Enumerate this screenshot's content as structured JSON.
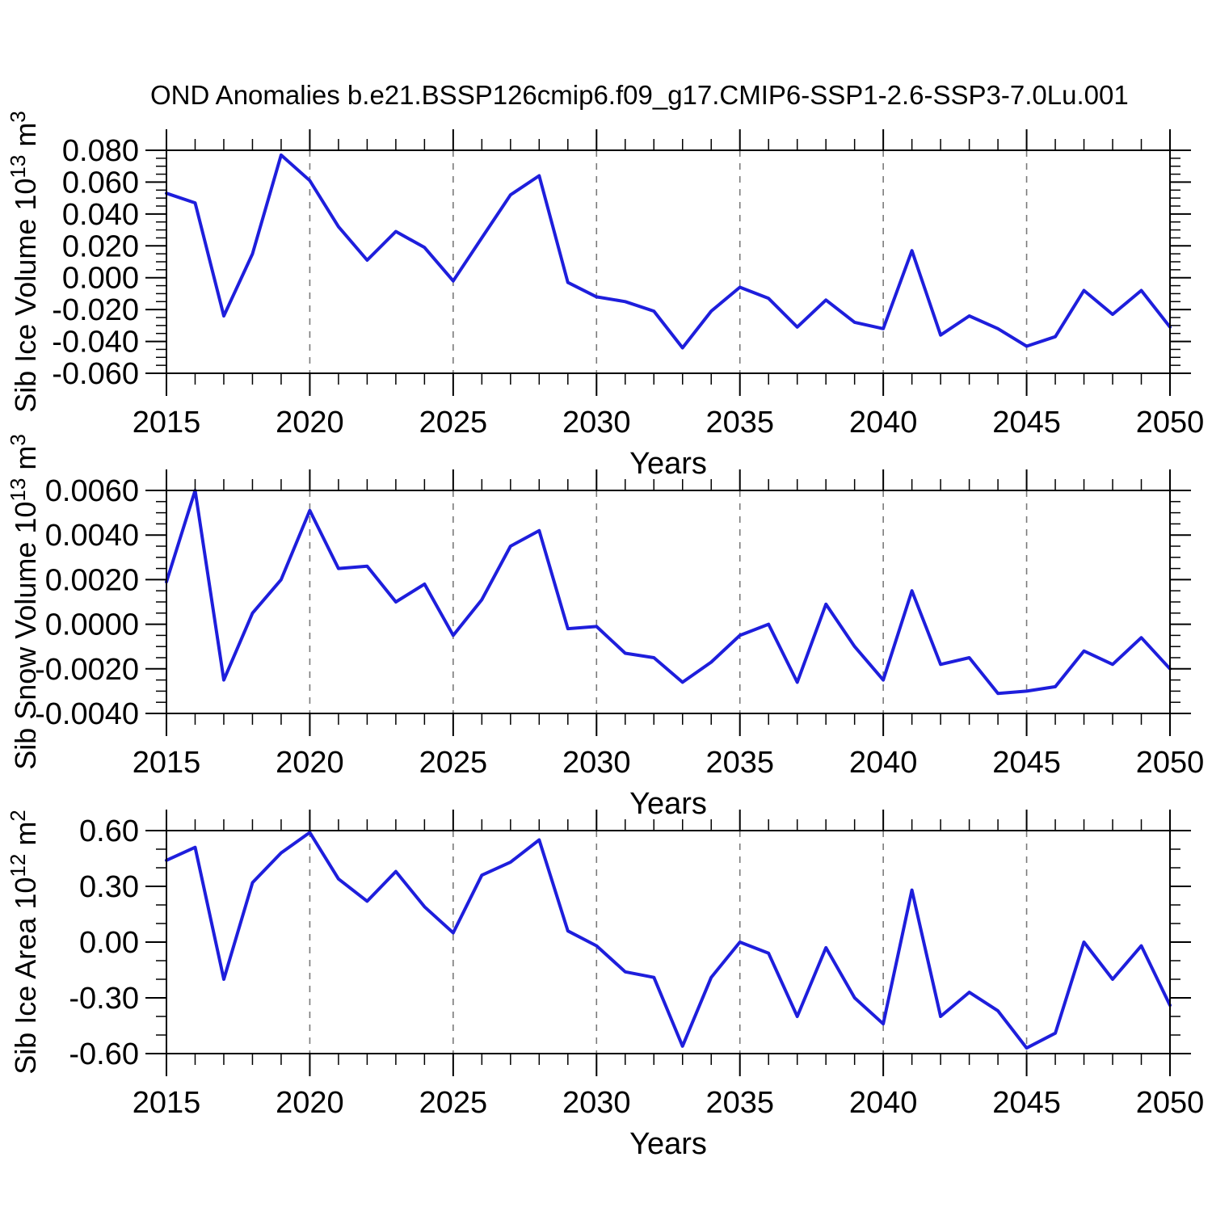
{
  "title": "OND Anomalies b.e21.BSSP126cmip6.f09_g17.CMIP6-SSP1-2.6-SSP3-7.0Lu.001",
  "colors": {
    "line": "#1e1edc",
    "grid": "#7a7a7a",
    "axis": "#000000",
    "text": "#000000",
    "background": "#ffffff"
  },
  "x_axis": {
    "label": "Years",
    "range": [
      2015,
      2050
    ],
    "ticks": [
      2015,
      2020,
      2025,
      2030,
      2035,
      2040,
      2045,
      2050
    ],
    "tick_labels": [
      "2015",
      "2020",
      "2025",
      "2030",
      "2035",
      "2040",
      "2045",
      "2050"
    ],
    "minor_step": 1,
    "grid_years": [
      2020,
      2025,
      2030,
      2035,
      2040,
      2045
    ]
  },
  "chart_data": [
    {
      "type": "line",
      "id": "sib-ice-volume",
      "ylabel_text": "Sib Ice Volume 10^13 m^3",
      "ylabel_parts": [
        {
          "t": "Sib Ice Volume 10"
        },
        {
          "t": "13",
          "sup": true
        },
        {
          "t": " m"
        },
        {
          "t": "3",
          "sup": true
        }
      ],
      "ylim": [
        -0.06,
        0.08
      ],
      "ytick_labels": [
        "0.080",
        "0.060",
        "0.040",
        "0.020",
        "0.000",
        "-0.020",
        "-0.040",
        "-0.060"
      ],
      "yminor_step": 0.005,
      "x": [
        2015,
        2016,
        2017,
        2018,
        2019,
        2020,
        2021,
        2022,
        2023,
        2024,
        2025,
        2026,
        2027,
        2028,
        2029,
        2030,
        2031,
        2032,
        2033,
        2034,
        2035,
        2036,
        2037,
        2038,
        2039,
        2040,
        2041,
        2042,
        2043,
        2044,
        2045,
        2046,
        2047,
        2048,
        2049,
        2050
      ],
      "values": [
        0.053,
        0.047,
        -0.024,
        0.015,
        0.077,
        0.061,
        0.032,
        0.011,
        0.029,
        0.019,
        -0.002,
        0.025,
        0.052,
        0.064,
        -0.003,
        -0.012,
        -0.015,
        -0.021,
        -0.044,
        -0.021,
        -0.006,
        -0.013,
        -0.031,
        -0.014,
        -0.028,
        -0.032,
        0.017,
        -0.036,
        -0.024,
        -0.032,
        -0.043,
        -0.037,
        -0.008,
        -0.023,
        -0.008,
        -0.031
      ]
    },
    {
      "type": "line",
      "id": "sib-snow-volume",
      "ylabel_text": "Sib Snow Volume 10^13 m^3",
      "ylabel_parts": [
        {
          "t": "Sib Snow Volume 10"
        },
        {
          "t": "13",
          "sup": true
        },
        {
          "t": " m"
        },
        {
          "t": "3",
          "sup": true
        }
      ],
      "ylim": [
        -0.004,
        0.006
      ],
      "ytick_labels": [
        "0.0060",
        "0.0040",
        "0.0020",
        "0.0000",
        "-0.0020",
        "-0.0040"
      ],
      "yminor_step": 0.0005,
      "x": [
        2015,
        2016,
        2017,
        2018,
        2019,
        2020,
        2021,
        2022,
        2023,
        2024,
        2025,
        2026,
        2027,
        2028,
        2029,
        2030,
        2031,
        2032,
        2033,
        2034,
        2035,
        2036,
        2037,
        2038,
        2039,
        2040,
        2041,
        2042,
        2043,
        2044,
        2045,
        2046,
        2047,
        2048,
        2049,
        2050
      ],
      "values": [
        0.0019,
        0.006,
        -0.0025,
        0.0005,
        0.002,
        0.0051,
        0.0025,
        0.0026,
        0.001,
        0.0018,
        -0.0005,
        0.0011,
        0.0035,
        0.0042,
        -0.0002,
        -0.0001,
        -0.0013,
        -0.0015,
        -0.0026,
        -0.0017,
        -0.0005,
        0.0,
        -0.0026,
        0.0009,
        -0.001,
        -0.0025,
        0.0015,
        -0.0018,
        -0.0015,
        -0.0031,
        -0.003,
        -0.0028,
        -0.0012,
        -0.0018,
        -0.0006,
        -0.002
      ]
    },
    {
      "type": "line",
      "id": "sib-ice-area",
      "ylabel_text": "Sib Ice Area 10^12 m^2",
      "ylabel_parts": [
        {
          "t": "Sib Ice Area 10"
        },
        {
          "t": "12",
          "sup": true
        },
        {
          "t": " m"
        },
        {
          "t": "2",
          "sup": true
        }
      ],
      "ylim": [
        -0.6,
        0.6
      ],
      "ytick_labels": [
        "0.60",
        "0.30",
        "0.00",
        "-0.30",
        "-0.60"
      ],
      "yminor_step": 0.1,
      "x": [
        2015,
        2016,
        2017,
        2018,
        2019,
        2020,
        2021,
        2022,
        2023,
        2024,
        2025,
        2026,
        2027,
        2028,
        2029,
        2030,
        2031,
        2032,
        2033,
        2034,
        2035,
        2036,
        2037,
        2038,
        2039,
        2040,
        2041,
        2042,
        2043,
        2044,
        2045,
        2046,
        2047,
        2048,
        2049,
        2050
      ],
      "values": [
        0.44,
        0.51,
        -0.2,
        0.32,
        0.48,
        0.59,
        0.34,
        0.22,
        0.38,
        0.19,
        0.05,
        0.36,
        0.43,
        0.55,
        0.06,
        -0.02,
        -0.16,
        -0.19,
        -0.56,
        -0.19,
        0.0,
        -0.06,
        -0.4,
        -0.03,
        -0.3,
        -0.44,
        0.28,
        -0.4,
        -0.27,
        -0.37,
        -0.57,
        -0.49,
        0.0,
        -0.2,
        -0.02,
        -0.34
      ]
    }
  ]
}
